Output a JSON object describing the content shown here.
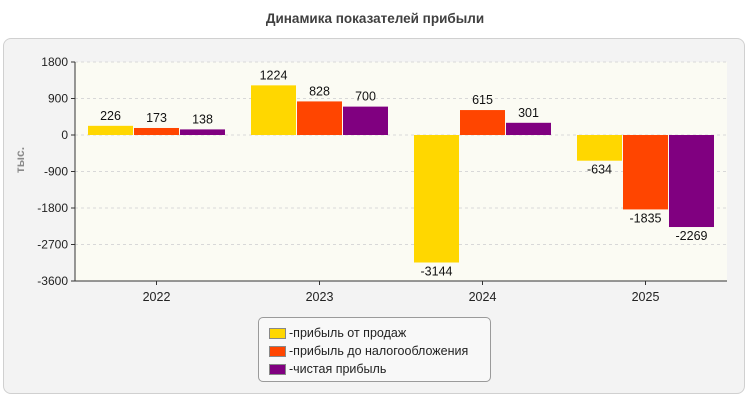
{
  "chart_data": {
    "type": "bar",
    "title": "Динамика показателей прибыли",
    "ylabel": "тыс.",
    "categories": [
      "2022",
      "2023",
      "2024",
      "2025"
    ],
    "ylim": [
      -3600,
      1800
    ],
    "yticks": [
      1800,
      900,
      0,
      -900,
      -1800,
      -2700,
      -3600
    ],
    "grid": true,
    "legend_position": "bottom-center",
    "series": [
      {
        "name": "прибыль от продаж",
        "color": "#FFD700",
        "values": [
          226,
          1224,
          -3144,
          -634
        ]
      },
      {
        "name": "прибыль до налогообложения",
        "color": "#FF4500",
        "values": [
          173,
          828,
          615,
          -1835
        ]
      },
      {
        "name": "чистая прибыль",
        "color": "#800080",
        "values": [
          138,
          700,
          301,
          -2269
        ]
      }
    ]
  },
  "legend_prefix": "- "
}
